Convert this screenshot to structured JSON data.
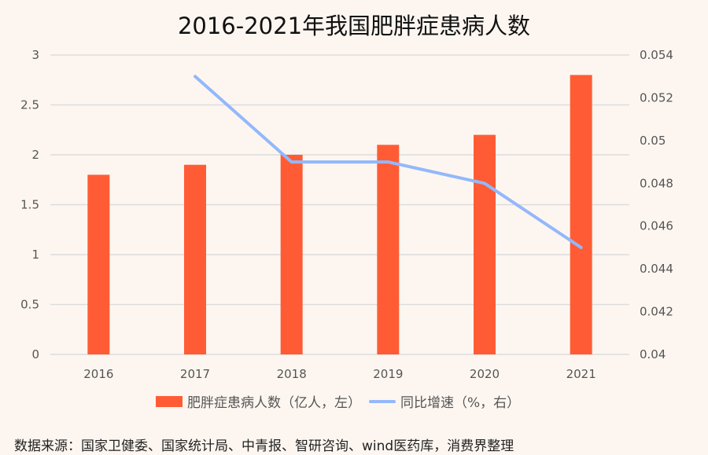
{
  "title": "2016-2021年我国肥胖症患病人数",
  "legend": {
    "bar_label": "肥胖症患病人数（亿人，左）",
    "line_label": "同比增速（%，右）"
  },
  "source": "数据来源：国家卫健委、国家统计局、中青报、智研咨询、wind医药库，消费界整理",
  "colors": {
    "bar": "#ff5c35",
    "line": "#93b8fb",
    "grid": "#dcdcdc",
    "background": "#fdf6f0"
  },
  "chart_data": {
    "type": "bar+line",
    "title": "2016-2021年我国肥胖症患病人数",
    "categories": [
      "2016",
      "2017",
      "2018",
      "2019",
      "2020",
      "2021"
    ],
    "series": [
      {
        "name": "肥胖症患病人数（亿人，左）",
        "type": "bar",
        "axis": "left",
        "values": [
          1.8,
          1.9,
          2.0,
          2.1,
          2.2,
          2.8
        ]
      },
      {
        "name": "同比增速（%，右）",
        "type": "line",
        "axis": "right",
        "values": [
          null,
          0.053,
          0.049,
          0.049,
          0.048,
          0.045
        ]
      }
    ],
    "left_axis": {
      "ticks": [
        "0",
        "0.5",
        "1",
        "1.5",
        "2",
        "2.5",
        "3"
      ],
      "ylim": [
        0,
        3
      ]
    },
    "right_axis": {
      "ticks": [
        "0.04",
        "0.042",
        "0.044",
        "0.046",
        "0.048",
        "0.05",
        "0.052",
        "0.054"
      ],
      "ylim": [
        0.04,
        0.054
      ]
    },
    "grid": true,
    "legend_position": "bottom"
  }
}
